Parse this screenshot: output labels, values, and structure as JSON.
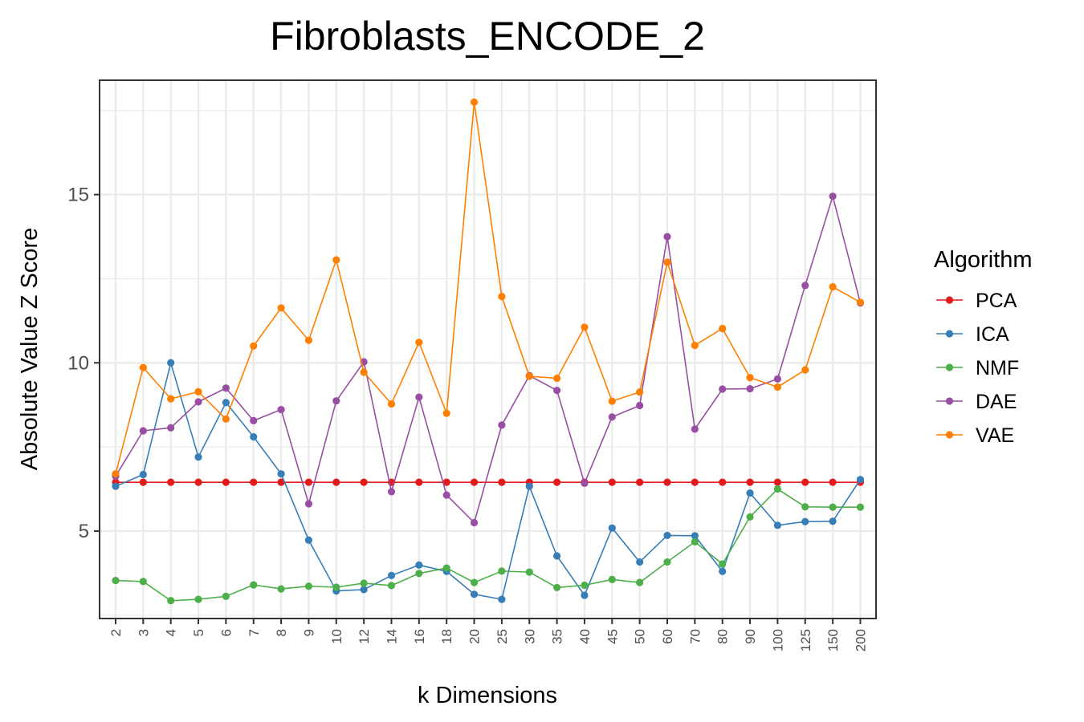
{
  "chart_data": {
    "type": "line",
    "title": "Fibroblasts_ENCODE_2",
    "xlabel": "k Dimensions",
    "ylabel": "Absolute Value Z Score",
    "categories": [
      "2",
      "3",
      "4",
      "5",
      "6",
      "7",
      "8",
      "9",
      "10",
      "12",
      "14",
      "16",
      "18",
      "20",
      "25",
      "30",
      "35",
      "40",
      "45",
      "50",
      "60",
      "70",
      "80",
      "90",
      "100",
      "125",
      "150",
      "200"
    ],
    "ylim": [
      2.4,
      18.4
    ],
    "yticks": [
      5,
      10,
      15
    ],
    "grid": true,
    "legend": {
      "title": "Algorithm",
      "position": "right"
    },
    "series": [
      {
        "name": "PCA",
        "color": "#E41A1C",
        "values": [
          6.45,
          6.45,
          6.45,
          6.45,
          6.45,
          6.45,
          6.45,
          6.45,
          6.45,
          6.45,
          6.45,
          6.45,
          6.45,
          6.45,
          6.45,
          6.45,
          6.45,
          6.45,
          6.45,
          6.45,
          6.45,
          6.45,
          6.45,
          6.45,
          6.45,
          6.45,
          6.45,
          6.45
        ]
      },
      {
        "name": "ICA",
        "color": "#377EB8",
        "values": [
          6.33,
          6.68,
          10.0,
          7.2,
          8.82,
          7.8,
          6.7,
          4.73,
          3.22,
          3.26,
          3.68,
          3.99,
          3.8,
          3.12,
          2.97,
          6.33,
          4.26,
          3.09,
          5.09,
          4.08,
          4.87,
          4.86,
          3.8,
          6.13,
          5.17,
          5.28,
          5.29,
          6.53
        ]
      },
      {
        "name": "NMF",
        "color": "#4DAF4A",
        "values": [
          3.53,
          3.5,
          2.93,
          2.97,
          3.06,
          3.4,
          3.28,
          3.36,
          3.33,
          3.45,
          3.38,
          3.74,
          3.9,
          3.47,
          3.81,
          3.78,
          3.32,
          3.39,
          3.56,
          3.47,
          4.08,
          4.68,
          4.02,
          5.42,
          6.25,
          5.72,
          5.71,
          5.71
        ]
      },
      {
        "name": "DAE",
        "color": "#984EA3",
        "values": [
          6.63,
          7.98,
          8.07,
          8.84,
          9.25,
          8.28,
          8.61,
          5.81,
          8.87,
          10.03,
          6.17,
          8.98,
          6.07,
          5.25,
          8.15,
          9.62,
          9.18,
          6.42,
          8.39,
          8.73,
          13.75,
          8.03,
          9.22,
          9.23,
          9.52,
          12.3,
          14.95,
          11.78
        ]
      },
      {
        "name": "VAE",
        "color": "#FF7F00",
        "values": [
          6.7,
          9.86,
          8.93,
          9.14,
          8.33,
          10.5,
          11.63,
          10.67,
          13.06,
          9.72,
          8.78,
          10.61,
          8.5,
          17.75,
          11.97,
          9.6,
          9.54,
          11.06,
          8.86,
          9.13,
          12.99,
          10.52,
          11.02,
          9.56,
          9.28,
          9.79,
          12.26,
          11.8
        ]
      }
    ]
  }
}
